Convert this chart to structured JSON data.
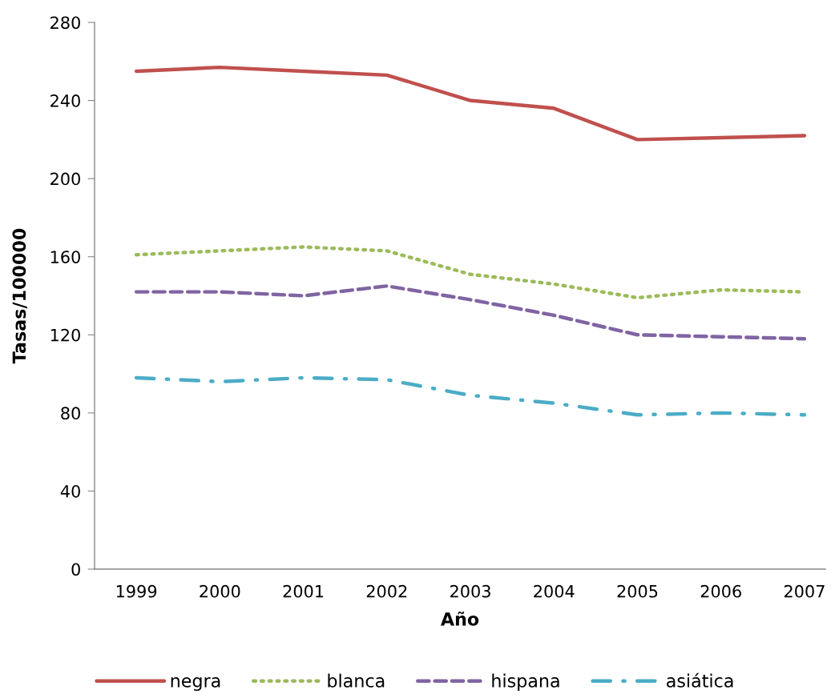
{
  "chart_data": {
    "type": "line",
    "xlabel": "Año",
    "ylabel": "Tasas/100000",
    "categories": [
      "1999",
      "2000",
      "2001",
      "2002",
      "2003",
      "2004",
      "2005",
      "2006",
      "2007"
    ],
    "series": [
      {
        "name": "negra",
        "color": "#c0504d",
        "line_style": "solid",
        "values": [
          255,
          257,
          255,
          253,
          240,
          236,
          220,
          221,
          222
        ]
      },
      {
        "name": "blanca",
        "color": "#9bbb59",
        "line_style": "dotted",
        "values": [
          161,
          163,
          165,
          163,
          151,
          146,
          139,
          143,
          142
        ]
      },
      {
        "name": "hispana",
        "color": "#8064a2",
        "line_style": "dashed",
        "values": [
          142,
          142,
          140,
          145,
          138,
          130,
          120,
          119,
          118
        ]
      },
      {
        "name": "asiática",
        "color": "#4bacc6",
        "line_style": "dashdot",
        "values": [
          98,
          96,
          98,
          97,
          89,
          85,
          79,
          80,
          79
        ]
      }
    ],
    "ylim": [
      0,
      280
    ],
    "yticks": [
      0,
      40,
      80,
      120,
      160,
      200,
      240,
      280
    ],
    "grid": false,
    "legend": "bottom",
    "marker": "none"
  }
}
